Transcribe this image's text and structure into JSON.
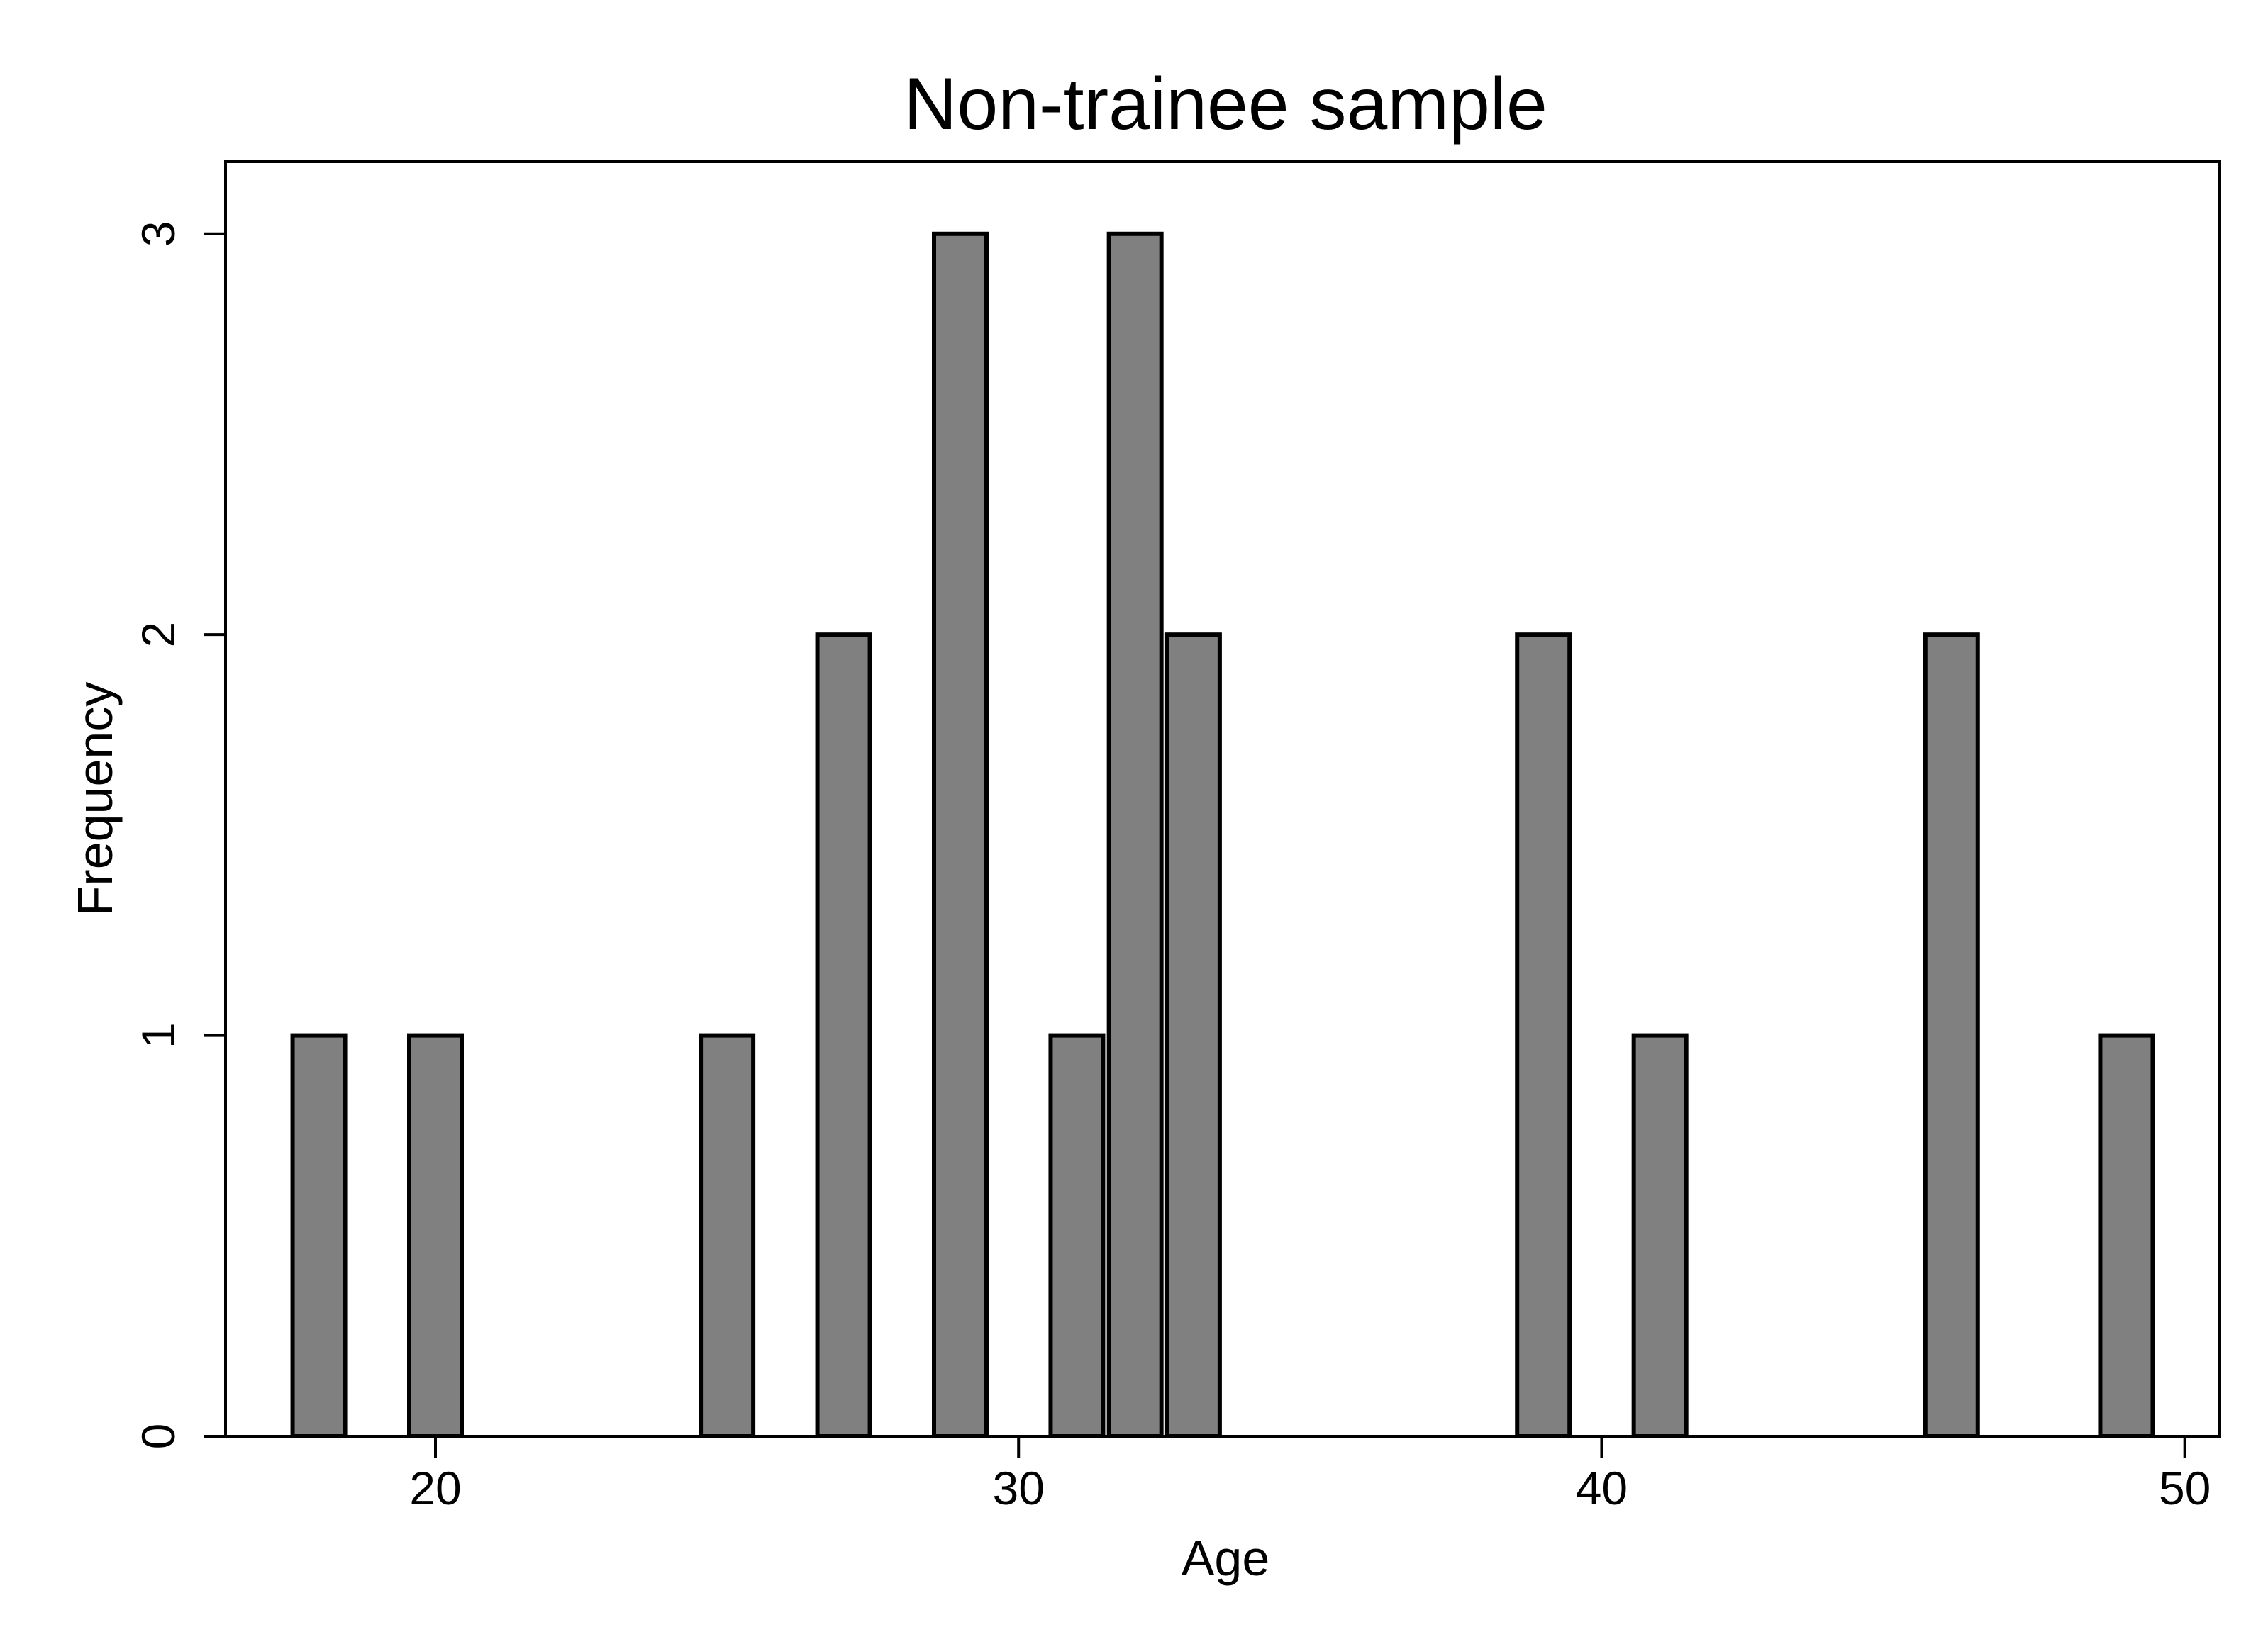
{
  "chart_data": {
    "type": "bar",
    "title": "Non-trainee sample",
    "xlabel": "Age",
    "ylabel": "Frequency",
    "bar_color": "#808080",
    "edge_color": "#000000",
    "xlim": [
      16.4,
      50.6
    ],
    "ylim": [
      0,
      3.18
    ],
    "bin_width": 1,
    "grid": false,
    "x_ticks": [
      20,
      30,
      40,
      50
    ],
    "x_tick_labels": [
      "20",
      "30",
      "40",
      "50"
    ],
    "y_ticks": [
      0,
      1,
      2,
      3
    ],
    "y_tick_labels": [
      "0",
      "1",
      "2",
      "3"
    ],
    "bars": [
      {
        "x": 18,
        "value": 1
      },
      {
        "x": 20,
        "value": 1
      },
      {
        "x": 25,
        "value": 1
      },
      {
        "x": 27,
        "value": 2
      },
      {
        "x": 29,
        "value": 3
      },
      {
        "x": 31,
        "value": 1
      },
      {
        "x": 32,
        "value": 3
      },
      {
        "x": 33,
        "value": 2
      },
      {
        "x": 39,
        "value": 2
      },
      {
        "x": 41,
        "value": 1
      },
      {
        "x": 46,
        "value": 2
      },
      {
        "x": 49,
        "value": 1
      }
    ]
  }
}
